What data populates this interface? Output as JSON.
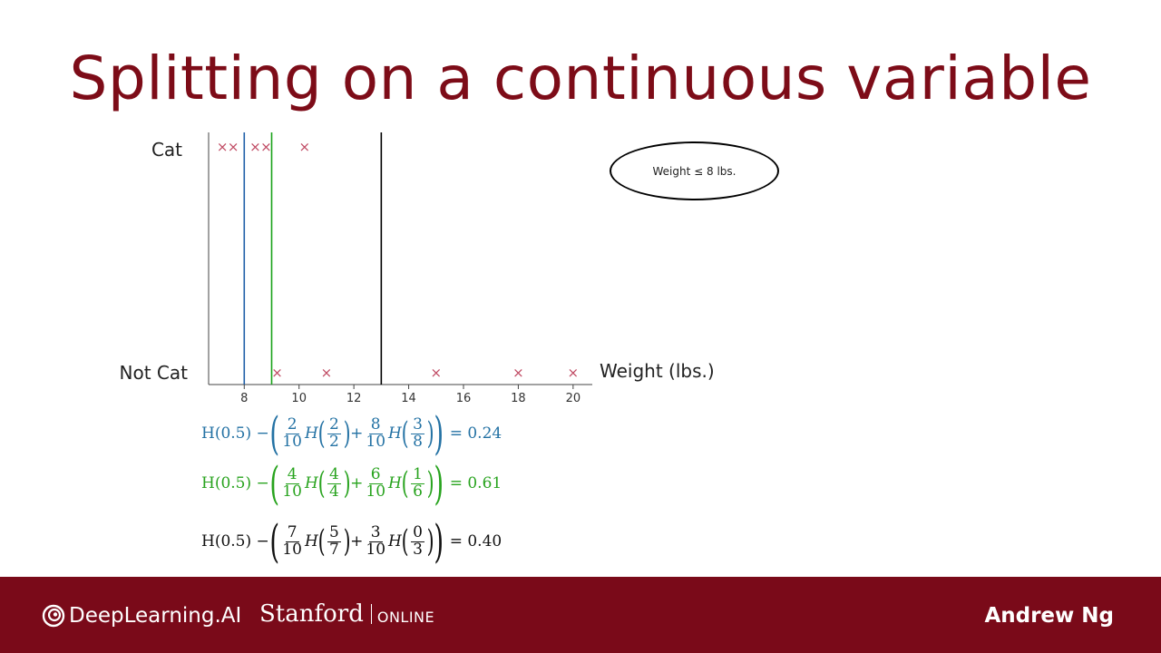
{
  "slide": {
    "title": "Splitting on a continuous variable",
    "node_label": "Weight ≤ 8 lbs."
  },
  "chart_data": {
    "type": "scatter",
    "xlabel": "Weight (lbs.)",
    "categories": [
      "Cat",
      "Not Cat"
    ],
    "xticks": [
      8,
      10,
      12,
      14,
      16,
      18,
      20
    ],
    "xlim": [
      6.7,
      20.7
    ],
    "marker": "×",
    "marker_color": "#c04a63",
    "series": [
      {
        "name": "Cat",
        "x": [
          7.2,
          7.6,
          8.4,
          8.8,
          10.2
        ]
      },
      {
        "name": "Not Cat",
        "x": [
          9.2,
          11.0,
          15.0,
          18.0,
          20.0
        ]
      }
    ],
    "thresholds": [
      {
        "x": 8.0,
        "color": "#1f5fa8"
      },
      {
        "x": 9.0,
        "color": "#1aa31a"
      },
      {
        "x": 13.0,
        "color": "#000000"
      }
    ]
  },
  "formulas": [
    {
      "color": "#2472a4",
      "prefix": "H(0.5) − ",
      "w1n": "2",
      "w1d": "10",
      "p1n": "2",
      "p1d": "2",
      "w2n": "8",
      "w2d": "10",
      "p2n": "3",
      "p2d": "8",
      "result": "= 0.24"
    },
    {
      "color": "#28a31e",
      "prefix": "H(0.5) − ",
      "w1n": "4",
      "w1d": "10",
      "p1n": "4",
      "p1d": "4",
      "w2n": "6",
      "w2d": "10",
      "p2n": "1",
      "p2d": "6",
      "result": "= 0.61"
    },
    {
      "color": "#111111",
      "prefix": "H(0.5) − ",
      "w1n": "7",
      "w1d": "10",
      "p1n": "5",
      "p1d": "7",
      "w2n": "3",
      "w2d": "10",
      "p2n": "0",
      "p2d": "3",
      "result": "= 0.40"
    }
  ],
  "footer": {
    "logo_text": "DeepLearning.AI",
    "stanford": "Stanford",
    "online": "ONLINE",
    "author": "Andrew Ng",
    "background_color": "#7a0a19"
  }
}
